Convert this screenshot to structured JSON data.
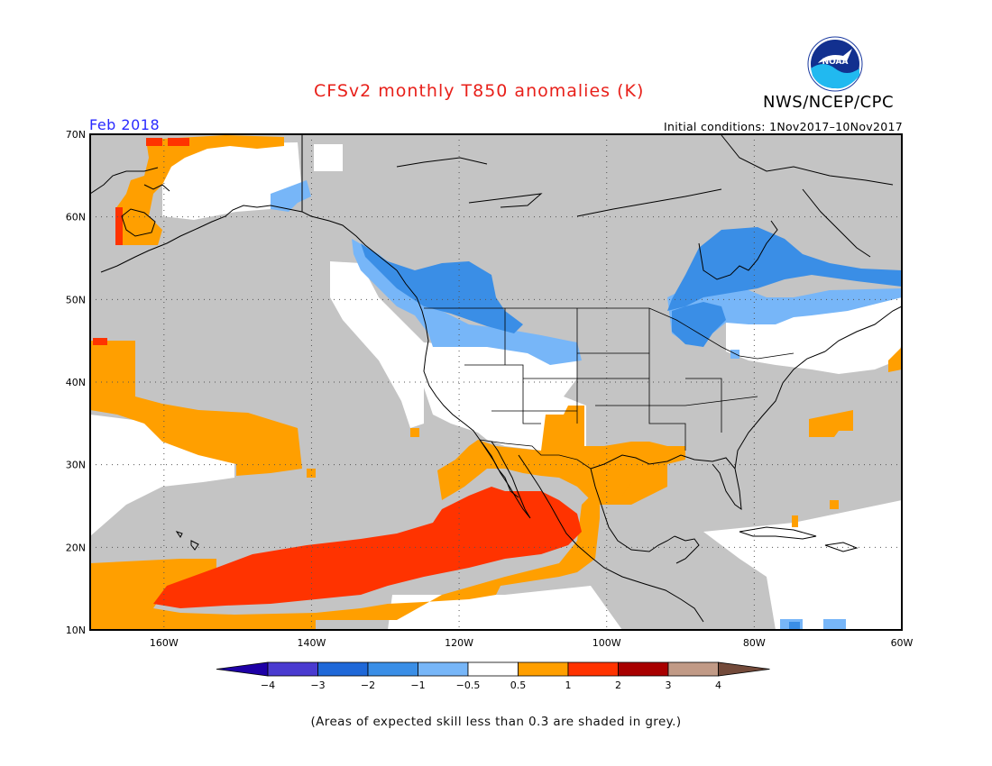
{
  "header": {
    "title": "CFSv2 monthly T850 anomalies (K)",
    "org": "NWS/NCEP/CPC",
    "logo_text": "NOAA",
    "period": "Feb 2018",
    "initial_conditions": "Initial conditions:  1Nov2017–10Nov2017"
  },
  "map": {
    "projection": "lat-lon",
    "lon_range": [
      -170,
      -60
    ],
    "lat_range": [
      10,
      70
    ],
    "lat_labels": [
      "70N",
      "60N",
      "50N",
      "40N",
      "30N",
      "20N",
      "10N"
    ],
    "lon_labels": [
      "160W",
      "140W",
      "120W",
      "100W",
      "80W",
      "60W"
    ],
    "grid": "dotted",
    "skill_mask_color": "#c4c4c4",
    "regions": [
      {
        "category": "1 to 2",
        "color": "#ff3300",
        "area": "subtropical eastern Pacific band"
      },
      {
        "category": "0.5 to 1",
        "color": "#ff9f00",
        "area": "eastern Pacific, Mexico, Gulf coast, Bering Sea"
      },
      {
        "category": "-1 to -0.5",
        "color": "#77b6f8",
        "area": "Pacific Northwest, Hudson Bay, Great Lakes"
      },
      {
        "category": "-2 to -1",
        "color": "#3a8ee6",
        "area": "southwest Canada, Hudson Bay"
      }
    ]
  },
  "colorbar": {
    "labels": [
      "−4",
      "−3",
      "−2",
      "−1",
      "−0.5",
      "0.5",
      "1",
      "2",
      "3",
      "4"
    ],
    "colors": [
      "#1e00a6",
      "#4a3bd0",
      "#1f68d8",
      "#3a8ee6",
      "#77b6f8",
      "#ffffff",
      "#ff9f00",
      "#ff3300",
      "#a80000",
      "#c19a86",
      "#734a3a"
    ]
  },
  "footnote": "(Areas of expected skill less than 0.3 are shaded in grey.)"
}
